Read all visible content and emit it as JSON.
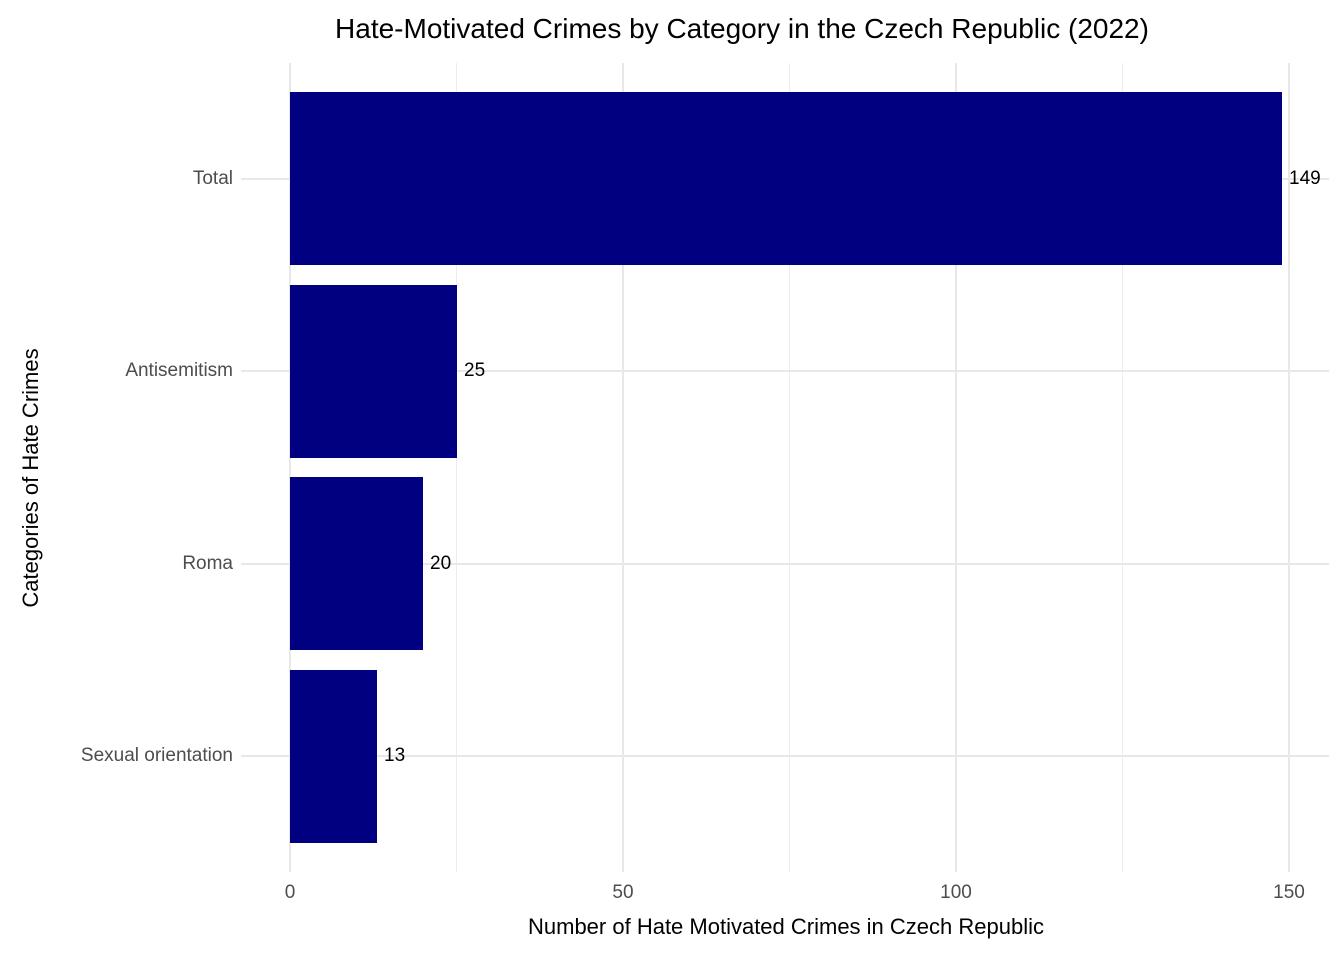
{
  "chart_data": {
    "type": "bar",
    "orientation": "horizontal",
    "title": "Hate-Motivated Crimes by Category in the Czech Republic (2022)",
    "xlabel": "Number of Hate Motivated Crimes in Czech Republic",
    "ylabel": "Categories of Hate Crimes",
    "categories": [
      "Total",
      "Antisemitism",
      "Roma",
      "Sexual orientation"
    ],
    "values": [
      149,
      25,
      20,
      13
    ],
    "bar_value_labels": [
      "149",
      "25",
      "20",
      "13"
    ],
    "xlim": [
      0,
      150
    ],
    "x_major_ticks": [
      0,
      50,
      100,
      150
    ],
    "x_tick_labels": [
      "0",
      "50",
      "100",
      "150"
    ],
    "x_minor_ticks": [
      25,
      75,
      125
    ],
    "grid": "x major+minor verticals, y major horizontals, no axis lines, no tick marks",
    "legend": false,
    "colors": {
      "bar": "#000080",
      "grid_major": "#e8e8e8",
      "grid_minor": "#ededed",
      "axis_text": "#4d4d4d",
      "title_text": "#000000",
      "value_label_text": "#000000",
      "background": "#ffffff"
    }
  }
}
